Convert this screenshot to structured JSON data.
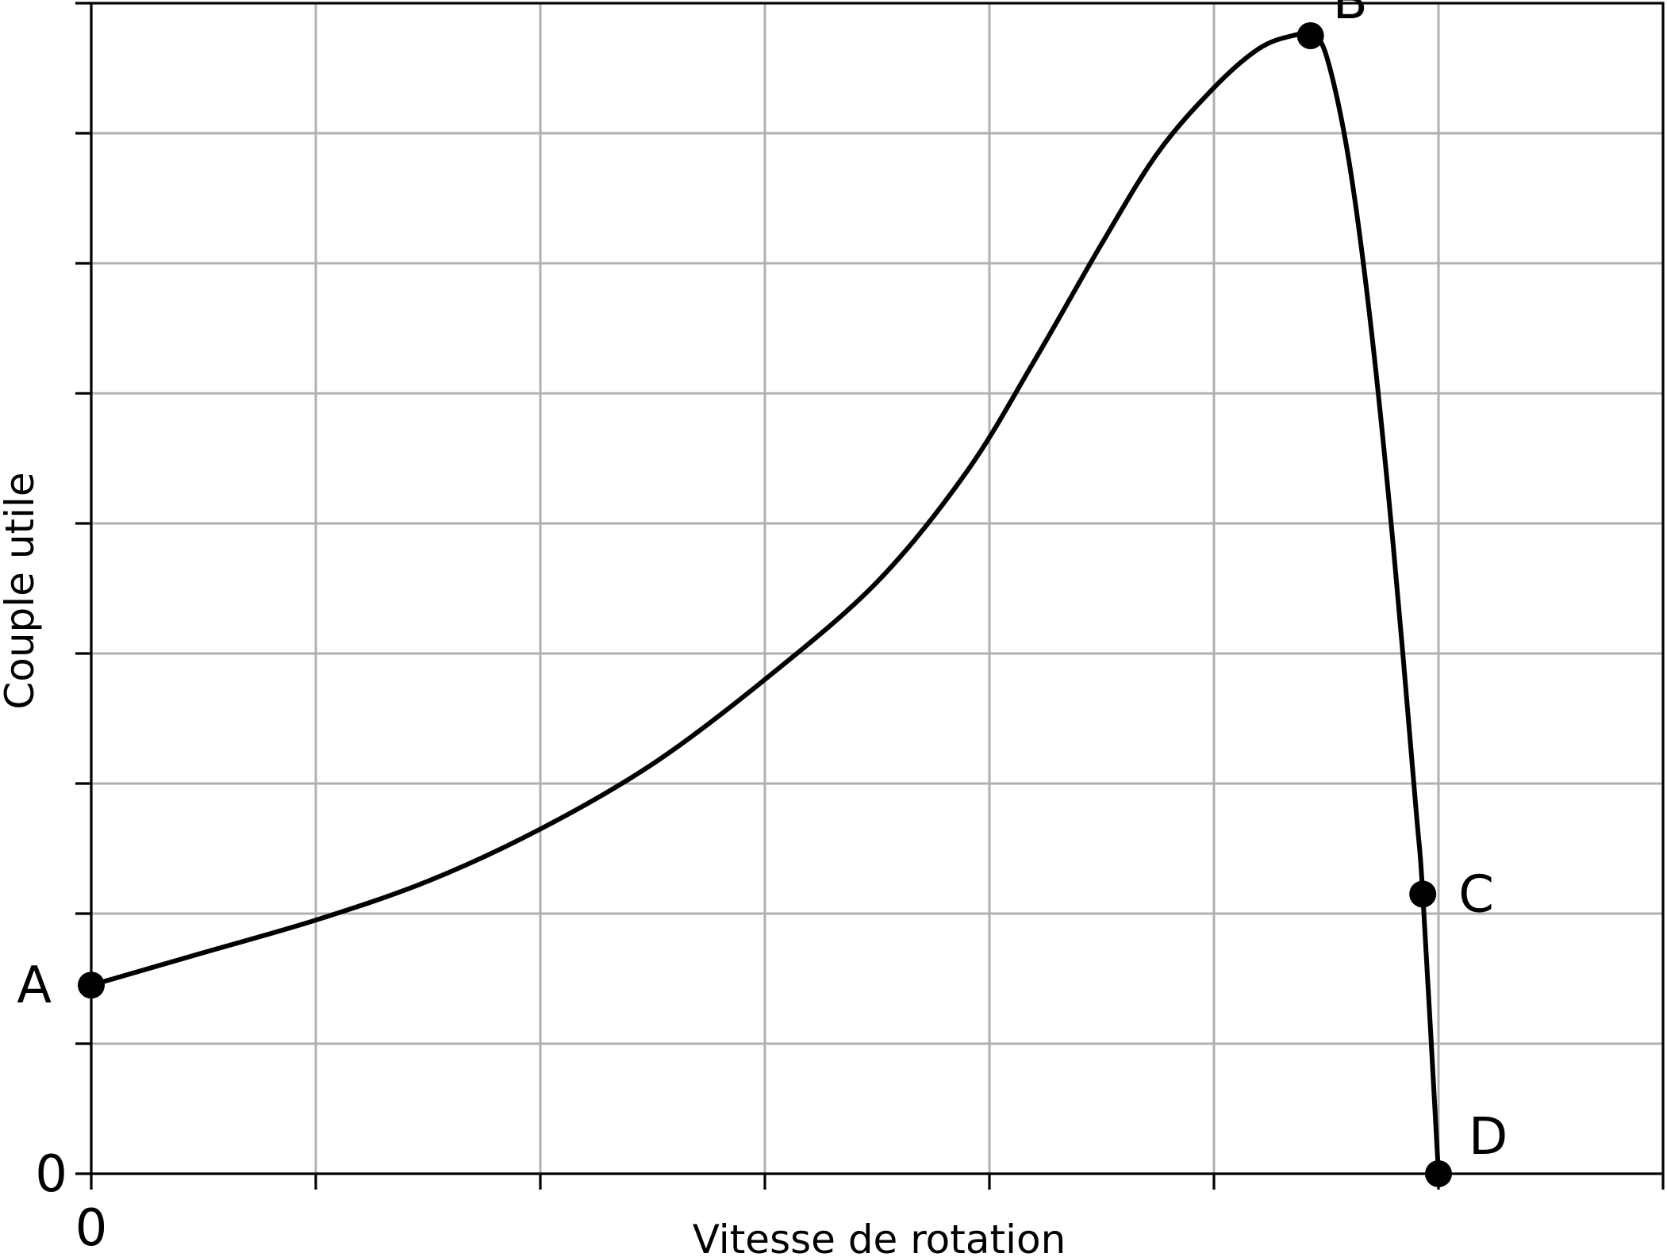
{
  "chart_data": {
    "type": "line",
    "title": "",
    "xlabel": "Vitesse de rotation",
    "ylabel": "Couple utile",
    "xlim": [
      0,
      7
    ],
    "ylim": [
      0,
      9
    ],
    "x_grid_count": 7,
    "y_grid_count": 9,
    "x_tick_labels": [
      {
        "value": 0,
        "label": "0"
      }
    ],
    "y_tick_labels": [
      {
        "value": 0,
        "label": "0"
      }
    ],
    "grid": true,
    "legend": "none",
    "colors": {
      "curve": "#000000",
      "grid": "#b0b0b0",
      "points": "#000000"
    },
    "series": [
      {
        "x": [
          0,
          0.5,
          1,
          1.5,
          2,
          2.5,
          3,
          3.5,
          3.9,
          4.2,
          4.5,
          4.75,
          5.0,
          5.2,
          5.35,
          5.43,
          5.5,
          5.6,
          5.7,
          5.8,
          5.9,
          5.93,
          6.0
        ],
        "y": [
          1.45,
          1.7,
          1.95,
          2.25,
          2.65,
          3.15,
          3.8,
          4.55,
          5.4,
          6.25,
          7.15,
          7.85,
          8.35,
          8.65,
          8.75,
          8.75,
          8.6,
          7.8,
          6.5,
          4.8,
          2.8,
          2.15,
          0
        ]
      }
    ],
    "points": [
      {
        "label": "A",
        "x": 0,
        "y": 1.45
      },
      {
        "label": "B",
        "x": 5.43,
        "y": 8.75
      },
      {
        "label": "C",
        "x": 5.93,
        "y": 2.15
      },
      {
        "label": "D",
        "x": 6.0,
        "y": 0
      }
    ]
  }
}
